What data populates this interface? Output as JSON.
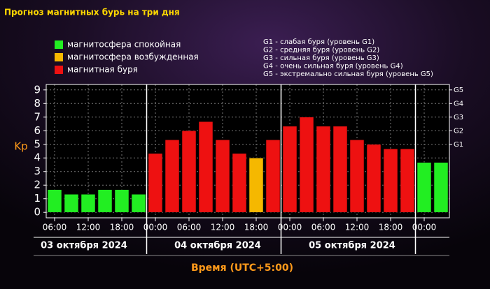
{
  "chart_data": {
    "type": "bar",
    "title": "Прогноз магнитных бурь на три дня",
    "y_label": "Kp",
    "x_label": "Время (UTC+5:00)",
    "legend": [
      {
        "name": "магнитосфера спокойная",
        "color": "#22ee22"
      },
      {
        "name": "магнитосфера возбужденная",
        "color": "#f5b800"
      },
      {
        "name": "магнитная буря",
        "color": "#ee1111"
      }
    ],
    "notes": [
      "G1 - слабая буря (уровень G1)",
      "G2 - средняя буря (уровень G2)",
      "G3 - сильная буря (уровень G3)",
      "G4 - очень сильная буря (уровень G4)",
      "G5 - экстремально сильная буря (уровень G5)"
    ],
    "days": [
      "03 октября 2024",
      "04 октября 2024",
      "05 октября 2024"
    ],
    "categories": [
      "06:00",
      null,
      "12:00",
      null,
      "18:00",
      null,
      "00:00",
      null,
      "06:00",
      null,
      "12:00",
      null,
      "18:00",
      null,
      "00:00",
      null,
      "06:00",
      null,
      "12:00",
      null,
      "18:00",
      null,
      "00:00",
      null
    ],
    "values": [
      1.67,
      1.33,
      1.33,
      1.67,
      1.67,
      1.33,
      4.33,
      5.33,
      6.0,
      6.67,
      5.33,
      4.33,
      4.0,
      5.33,
      6.33,
      7.0,
      6.33,
      6.33,
      5.33,
      5.0,
      4.67,
      4.67,
      3.67,
      3.67
    ],
    "colors": [
      "#22ee22",
      "#22ee22",
      "#22ee22",
      "#22ee22",
      "#22ee22",
      "#22ee22",
      "#ee1111",
      "#ee1111",
      "#ee1111",
      "#ee1111",
      "#ee1111",
      "#ee1111",
      "#f5b800",
      "#ee1111",
      "#ee1111",
      "#ee1111",
      "#ee1111",
      "#ee1111",
      "#ee1111",
      "#ee1111",
      "#ee1111",
      "#ee1111",
      "#22ee22",
      "#22ee22"
    ],
    "ylim": [
      -0.4,
      9.4
    ],
    "yticks": [
      0,
      1,
      2,
      3,
      4,
      5,
      6,
      7,
      8,
      9
    ],
    "y2lim": [
      -0.4,
      9.4
    ],
    "y2ticks": [
      {
        "value": 5,
        "label": "G1"
      },
      {
        "value": 6,
        "label": "G2"
      },
      {
        "value": 7,
        "label": "G3"
      },
      {
        "value": 8,
        "label": "G4"
      },
      {
        "value": 9,
        "label": "G5"
      }
    ],
    "grid": true
  }
}
